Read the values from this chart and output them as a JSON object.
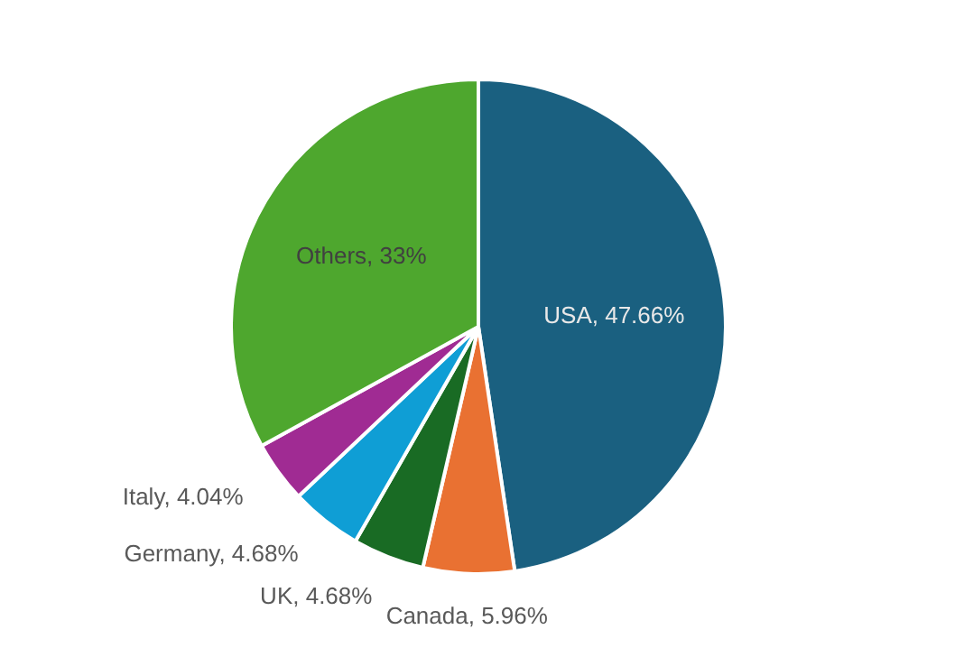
{
  "chart_data": {
    "type": "pie",
    "categories": [
      "USA",
      "Canada",
      "UK",
      "Germany",
      "Italy",
      "Others"
    ],
    "values": [
      47.66,
      5.96,
      4.68,
      4.68,
      4.04,
      33
    ],
    "value_labels": [
      "47.66%",
      "5.96%",
      "4.68%",
      "4.68%",
      "4.04%",
      "33%"
    ],
    "colors": [
      "#1a6080",
      "#e97132",
      "#196b24",
      "#0f9ed5",
      "#a02b93",
      "#4ea72e"
    ],
    "legend": false
  }
}
